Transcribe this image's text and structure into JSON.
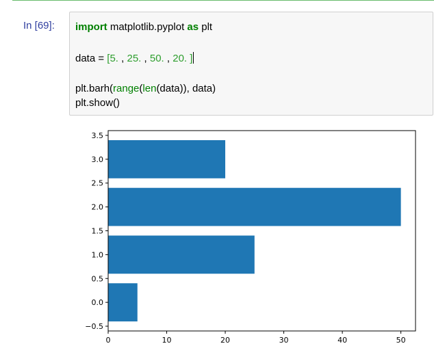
{
  "cell": {
    "prompt": "In [69]:",
    "code": {
      "line1": {
        "kw_import": "import",
        "module": " matplotlib.pyplot ",
        "kw_as": "as",
        "alias": " plt"
      },
      "line2": {
        "lhs": "data = ",
        "open": "[",
        "v1": "5.",
        "sep1": " , ",
        "v2": "25.",
        "sep2": " , ",
        "v3": "50.",
        "sep3": " , ",
        "v4": "20.",
        "close": " ]"
      },
      "line3": {
        "a": "plt.barh(",
        "b": "range",
        "c": "(",
        "d": "len",
        "e": "(data)), data)"
      },
      "line4": "plt.show()"
    }
  },
  "colors": {
    "bar": "#1f77b4",
    "prompt": "#303f9f",
    "keyword": "#008000"
  },
  "chart_data": {
    "type": "bar",
    "orientation": "horizontal",
    "categories": [
      0,
      1,
      2,
      3
    ],
    "values": [
      5,
      25,
      50,
      20
    ],
    "bar_height": 0.8,
    "xlim": [
      0,
      52.5
    ],
    "ylim": [
      -0.6,
      3.6
    ],
    "xticks": [
      0,
      10,
      20,
      30,
      40,
      50
    ],
    "yticks": [
      -0.5,
      0.0,
      0.5,
      1.0,
      1.5,
      2.0,
      2.5,
      3.0,
      3.5
    ],
    "xtick_labels": [
      "0",
      "10",
      "20",
      "30",
      "40",
      "50"
    ],
    "ytick_labels": [
      "−0.5",
      "0.0",
      "0.5",
      "1.0",
      "1.5",
      "2.0",
      "2.5",
      "3.0",
      "3.5"
    ],
    "title": "",
    "xlabel": "",
    "ylabel": "",
    "grid": false
  }
}
